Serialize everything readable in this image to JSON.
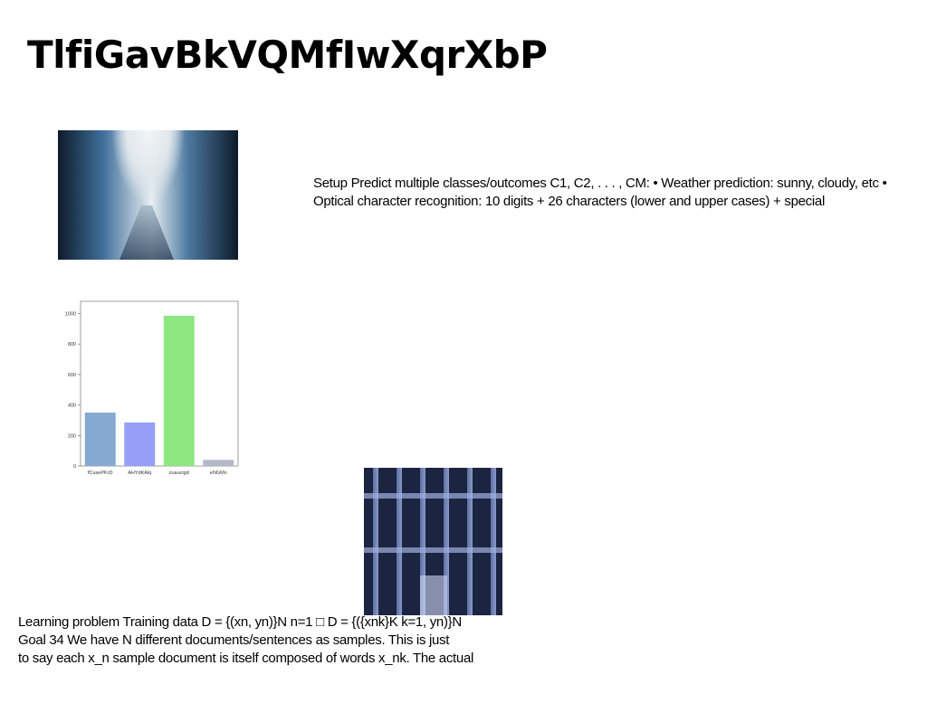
{
  "title": "TlfiGavBkVQMfIwXqrXbP",
  "images": {
    "trees_icon": "forest-road-photo",
    "building_icon": "building-facade-photo"
  },
  "setup_text": "Setup Predict multiple classes/outcomes C1, C2, . . . , CM: • Weather prediction: sunny, cloudy, etc • Optical character recognition: 10 digits + 26 characters (lower and upper cases) + special",
  "learning_lines": [
    "Learning problem Training data D = {(xn, yn)}N n=1 □ D = {({xnk}K k=1, yn)}N",
    "Goal 34 We have N different documents/sentences as samples. This is just",
    "to say each x_n sample document is itself composed of words x_nk. The actual"
  ],
  "chart_data": {
    "type": "bar",
    "categories": [
      "fCusePKrD",
      "AHYdKAlq",
      "zuaucigd",
      "eNGMn"
    ],
    "values": [
      350,
      285,
      985,
      40
    ],
    "colors": [
      "#86a9d1",
      "#949ff5",
      "#8de67f",
      "#b3b9c8"
    ],
    "yticks": [
      "0",
      "200",
      "400",
      "600",
      "800",
      "1000"
    ],
    "ylim": [
      0,
      1080
    ]
  }
}
